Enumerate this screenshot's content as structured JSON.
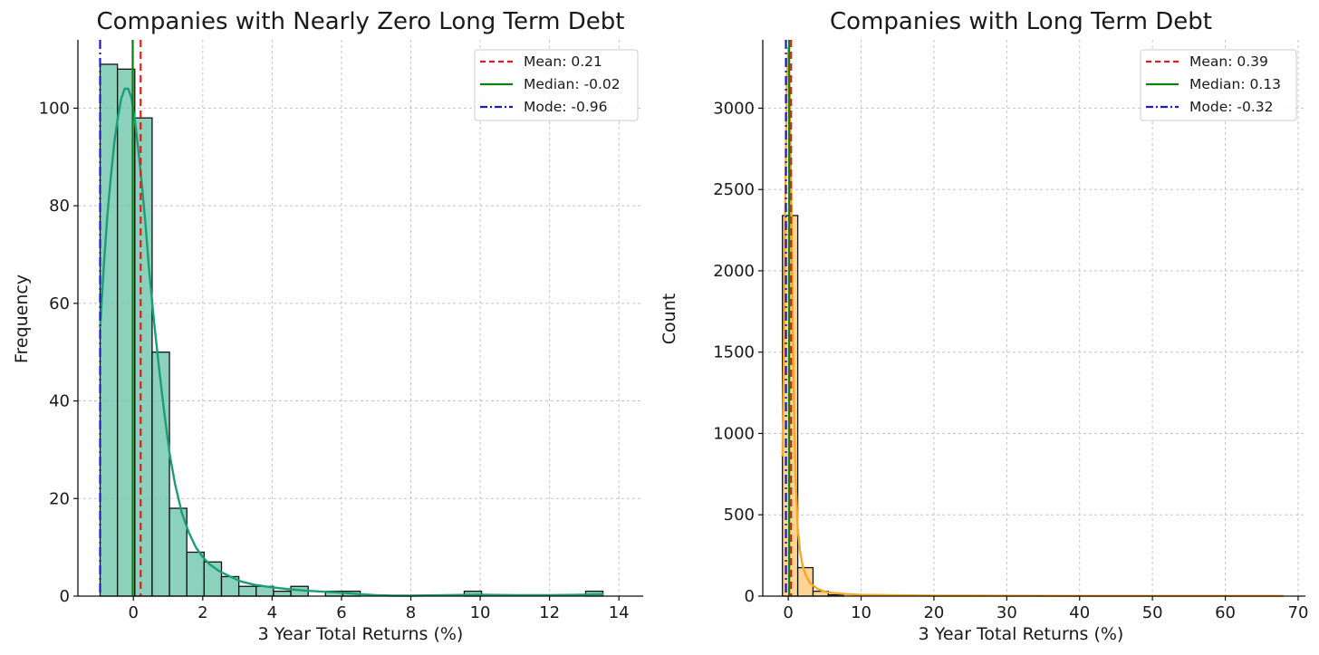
{
  "chart_data": [
    {
      "type": "bar",
      "title": "Companies with Nearly Zero Long Term Debt",
      "xlabel": "3 Year Total Returns (%)",
      "ylabel": "Frequency",
      "xlim": [
        -1.6,
        14.7
      ],
      "ylim": [
        0,
        114
      ],
      "xticks": [
        0,
        2,
        4,
        6,
        8,
        10,
        12,
        14
      ],
      "yticks": [
        0,
        20,
        40,
        60,
        80,
        100
      ],
      "grid": true,
      "bar_color": "#66c2a5",
      "kde_color": "#1b9e77",
      "bin_edges": [
        -0.96,
        -0.46,
        0.04,
        0.54,
        1.04,
        1.54,
        2.04,
        2.54,
        3.04,
        3.54,
        4.04,
        4.54,
        5.04,
        5.54,
        6.04,
        6.54,
        7.04,
        7.54,
        8.04,
        8.54,
        9.04,
        9.54,
        10.04,
        10.54,
        11.04,
        11.54,
        12.04,
        12.54,
        13.04,
        13.54
      ],
      "counts": [
        109,
        108,
        98,
        50,
        18,
        9,
        7,
        4,
        2,
        2,
        1,
        2,
        0,
        1,
        1,
        0,
        0,
        0,
        0,
        0,
        0,
        1,
        0,
        0,
        0,
        0,
        0,
        0,
        1
      ],
      "kde": {
        "x": [
          -0.96,
          -0.85,
          -0.75,
          -0.65,
          -0.55,
          -0.45,
          -0.35,
          -0.25,
          -0.15,
          -0.05,
          0.05,
          0.15,
          0.25,
          0.35,
          0.45,
          0.6,
          0.75,
          0.9,
          1.05,
          1.2,
          1.4,
          1.6,
          1.8,
          2.0,
          2.2,
          2.5,
          2.8,
          3.1,
          3.5,
          4.0,
          4.5,
          5.0,
          5.5,
          6.0,
          6.5,
          7.0,
          7.5,
          8.0,
          9.0,
          10.0,
          11.0,
          12.0,
          13.0,
          13.55
        ],
        "y": [
          55,
          68,
          78,
          86,
          93,
          98,
          102,
          104,
          104,
          102,
          97,
          91,
          84,
          76,
          67,
          56,
          46,
          37,
          29,
          23,
          17,
          13,
          10,
          8,
          6.5,
          5,
          4,
          3,
          2.3,
          1.8,
          1.4,
          1.1,
          0.9,
          0.7,
          0.4,
          0.2,
          0.1,
          0.1,
          0.2,
          0.3,
          0.2,
          0.2,
          0.3,
          0.4
        ]
      },
      "reference_lines": [
        {
          "label": "Mean: 0.21",
          "value": 0.21,
          "color": "#e41a1c",
          "style": "dashed"
        },
        {
          "label": "Median: -0.02",
          "value": -0.02,
          "color": "#0f7f0f",
          "style": "solid"
        },
        {
          "label": "Mode: -0.96",
          "value": -0.96,
          "color": "#1a1acc",
          "style": "dashdot"
        }
      ],
      "legend_position": "top-right"
    },
    {
      "type": "bar",
      "title": "Companies with Long Term Debt",
      "xlabel": "3 Year Total Returns (%)",
      "ylabel": "Count",
      "xlim": [
        -3.5,
        71
      ],
      "ylim": [
        0,
        3420
      ],
      "xticks": [
        0,
        10,
        20,
        30,
        40,
        50,
        60,
        70
      ],
      "yticks": [
        0,
        500,
        1000,
        1500,
        2000,
        2500,
        3000
      ],
      "grid": true,
      "bar_color": "#fdc86e",
      "kde_color": "#f9a825",
      "bin_edges": [
        -0.8,
        1.3,
        3.4,
        5.5,
        7.6
      ],
      "counts": [
        2340,
        175,
        30,
        8
      ],
      "kde": {
        "x": [
          -0.8,
          -0.6,
          -0.4,
          -0.2,
          0.0,
          0.2,
          0.4,
          0.6,
          0.8,
          1.0,
          1.3,
          1.6,
          2.0,
          2.5,
          3.0,
          4.0,
          5.0,
          6.0,
          8.0,
          10.0,
          15.0,
          20.0,
          30.0,
          40.0,
          50.0,
          60.0,
          68.0
        ],
        "y": [
          860,
          1450,
          2450,
          3150,
          3370,
          3100,
          2450,
          1700,
          1120,
          720,
          420,
          280,
          180,
          120,
          80,
          45,
          28,
          20,
          12,
          8,
          5,
          3,
          2,
          1,
          1,
          1,
          1
        ]
      },
      "reference_lines": [
        {
          "label": "Mean: 0.39",
          "value": 0.39,
          "color": "#e41a1c",
          "style": "dashed"
        },
        {
          "label": "Median: 0.13",
          "value": 0.13,
          "color": "#0f7f0f",
          "style": "solid"
        },
        {
          "label": "Mode: -0.32",
          "value": -0.32,
          "color": "#1a1acc",
          "style": "dashdot"
        }
      ],
      "legend_position": "top-right"
    }
  ]
}
